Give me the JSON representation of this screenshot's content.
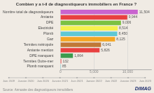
{
  "chart_data": {
    "type": "bar",
    "orientation": "horizontal",
    "title": "Combien y a t-il de diagnostiqueurs immobiliers en France ?",
    "categories": [
      "Nombre total de diagnostiqueurs",
      "Amiante",
      "DPE",
      "Electricité",
      "Plomb",
      "Gaz",
      "Termites métropole",
      "Amiante mention",
      "DPE manquant",
      "Termites Outre-mer",
      "Plomb manquant"
    ],
    "values": [
      11504,
      9944,
      9006,
      8514,
      8450,
      8125,
      6041,
      5826,
      1864,
      132,
      85
    ],
    "value_labels": [
      "11,504",
      "9,944",
      "9,006",
      "8,514",
      "8,450",
      "8,125",
      "6,041",
      "5,826",
      "1,864",
      "132",
      "85"
    ],
    "colors": [
      "#c964cf",
      "#e84040",
      "#7bc142",
      "#f5f14e",
      "#5ec8d4",
      "#f5a623",
      "#c07836",
      "#e84040",
      "#3d9b4e",
      "#e84040",
      "#5ec8d4"
    ],
    "xlim": [
      0,
      13500
    ],
    "xticks": [
      {
        "value": 0,
        "label": "0"
      },
      {
        "value": 5000,
        "label": "5,000"
      },
      {
        "value": 10000,
        "label": "10,000"
      }
    ],
    "grid": true,
    "data_labels": true,
    "annotations": [
      "Juin 2019",
      "Janvier 2020",
      "Juin 2020",
      "Janvier 2021",
      "Juin 2021",
      "Janvier 2022",
      "Juin 2022",
      "Janvier 2023",
      "Juin 2023",
      "Source: Annuaire des diagnostiqueurs immobiliers",
      "DiMAG"
    ]
  }
}
